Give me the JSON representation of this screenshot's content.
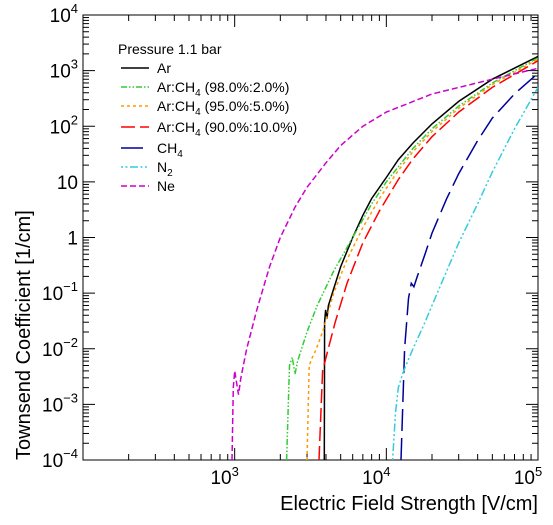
{
  "chart_data": {
    "type": "line",
    "xlabel": "Electric Field Strength [V/cm]",
    "ylabel": "Townsend Coefficient [1/cm]",
    "x_scale": "log",
    "y_scale": "log",
    "xlim": [
      100,
      100000
    ],
    "ylim": [
      0.0001,
      10000
    ],
    "grid": false,
    "legend_position": "top-left",
    "legend_title": "Pressure 1.1 bar",
    "x_ticks": [
      {
        "base": "10",
        "exp": "3",
        "value": 1000
      },
      {
        "base": "10",
        "exp": "4",
        "value": 10000
      },
      {
        "base": "10",
        "exp": "5",
        "value": 100000
      }
    ],
    "y_ticks": [
      {
        "base": "10",
        "exp": "−4",
        "value": 0.0001
      },
      {
        "base": "10",
        "exp": "−3",
        "value": 0.001
      },
      {
        "base": "10",
        "exp": "−2",
        "value": 0.01
      },
      {
        "base": "10",
        "exp": "−1",
        "value": 0.1
      },
      {
        "base": "1",
        "exp": "",
        "value": 1
      },
      {
        "base": "10",
        "exp": "",
        "value": 10
      },
      {
        "base": "10",
        "exp": "2",
        "value": 100
      },
      {
        "base": "10",
        "exp": "3",
        "value": 1000
      },
      {
        "base": "10",
        "exp": "4",
        "value": 10000
      }
    ],
    "series": [
      {
        "name": "Ar",
        "label_main": "Ar",
        "label_sub": "",
        "label_rest": "",
        "color": "#000000",
        "dash": "",
        "points": [
          [
            3900,
            0.0001
          ],
          [
            3920,
            0.03
          ],
          [
            3980,
            0.05
          ],
          [
            4060,
            0.035
          ],
          [
            4150,
            0.06
          ],
          [
            4400,
            0.1
          ],
          [
            5000,
            0.3
          ],
          [
            6000,
            1
          ],
          [
            7000,
            2.5
          ],
          [
            8000,
            5
          ],
          [
            10000,
            12
          ],
          [
            12000,
            25
          ],
          [
            15000,
            50
          ],
          [
            20000,
            110
          ],
          [
            30000,
            280
          ],
          [
            50000,
            700
          ],
          [
            100000,
            1800
          ]
        ]
      },
      {
        "name": "Ar:CH4 (98.0%:2.0%)",
        "label_main": "Ar:CH",
        "label_sub": "4",
        "label_rest": " (98.0%:2.0%)",
        "color": "#33cc33",
        "dash": "6,2,1.5,2,1.5,2",
        "points": [
          [
            2200,
            0.0001
          ],
          [
            2300,
            0.005
          ],
          [
            2400,
            0.007
          ],
          [
            2500,
            0.0035
          ],
          [
            2600,
            0.006
          ],
          [
            3000,
            0.02
          ],
          [
            3500,
            0.06
          ],
          [
            4500,
            0.25
          ],
          [
            6000,
            1
          ],
          [
            8000,
            4
          ],
          [
            10000,
            10
          ],
          [
            15000,
            40
          ],
          [
            20000,
            90
          ],
          [
            30000,
            230
          ],
          [
            50000,
            600
          ],
          [
            100000,
            1700
          ]
        ]
      },
      {
        "name": "Ar:CH4 (95.0%:5.0%)",
        "label_main": "Ar:CH",
        "label_sub": "4",
        "label_rest": " (95.0%:5.0%)",
        "color": "#ff9900",
        "dash": "3,3",
        "points": [
          [
            3000,
            0.0001
          ],
          [
            3100,
            0.005
          ],
          [
            3250,
            0.007
          ],
          [
            3400,
            0.009
          ],
          [
            3800,
            0.02
          ],
          [
            4500,
            0.1
          ],
          [
            5500,
            0.4
          ],
          [
            7000,
            1.5
          ],
          [
            9000,
            5
          ],
          [
            12000,
            16
          ],
          [
            15000,
            35
          ],
          [
            20000,
            80
          ],
          [
            30000,
            210
          ],
          [
            50000,
            560
          ],
          [
            100000,
            1600
          ]
        ]
      },
      {
        "name": "Ar:CH4 (90.0%:10.0%)",
        "label_main": "Ar:CH",
        "label_sub": "4",
        "label_rest": " (90.0%:10.0%)",
        "color": "#ff0000",
        "dash": "14,5",
        "points": [
          [
            3600,
            0.0001
          ],
          [
            3800,
            0.004
          ],
          [
            4100,
            0.009
          ],
          [
            4600,
            0.03
          ],
          [
            5500,
            0.15
          ],
          [
            7000,
            0.8
          ],
          [
            9000,
            3
          ],
          [
            12000,
            11
          ],
          [
            15000,
            26
          ],
          [
            20000,
            65
          ],
          [
            30000,
            180
          ],
          [
            50000,
            500
          ],
          [
            100000,
            1500
          ]
        ]
      },
      {
        "name": "CH4",
        "label_main": "CH",
        "label_sub": "4",
        "label_rest": "",
        "color": "#000099",
        "dash": "22,7",
        "points": [
          [
            12500,
            0.0001
          ],
          [
            13200,
            0.01
          ],
          [
            14000,
            0.08
          ],
          [
            14600,
            0.15
          ],
          [
            15200,
            0.13
          ],
          [
            16000,
            0.2
          ],
          [
            18000,
            0.5
          ],
          [
            20000,
            1.2
          ],
          [
            25000,
            5
          ],
          [
            30000,
            14
          ],
          [
            40000,
            55
          ],
          [
            50000,
            140
          ],
          [
            70000,
            380
          ],
          [
            100000,
            900
          ]
        ]
      },
      {
        "name": "N2",
        "label_main": "N",
        "label_sub": "2",
        "label_rest": "",
        "color": "#33ccdd",
        "dash": "2,2.5,2,2.5,8,2.5",
        "points": [
          [
            11000,
            0.0001
          ],
          [
            11500,
            0.0007
          ],
          [
            12000,
            0.002
          ],
          [
            13000,
            0.004
          ],
          [
            15000,
            0.01
          ],
          [
            18000,
            0.03
          ],
          [
            20000,
            0.06
          ],
          [
            25000,
            0.25
          ],
          [
            30000,
            0.8
          ],
          [
            40000,
            4
          ],
          [
            50000,
            15
          ],
          [
            70000,
            90
          ],
          [
            100000,
            500
          ]
        ]
      },
      {
        "name": "Ne",
        "label_main": "Ne",
        "label_sub": "",
        "label_rest": "",
        "color": "#cc00cc",
        "dash": "6,3",
        "points": [
          [
            960,
            0.0001
          ],
          [
            980,
            0.002
          ],
          [
            1000,
            0.004
          ],
          [
            1060,
            0.0015
          ],
          [
            1100,
            0.003
          ],
          [
            1200,
            0.01
          ],
          [
            1400,
            0.05
          ],
          [
            1700,
            0.3
          ],
          [
            2000,
            1
          ],
          [
            2500,
            3.5
          ],
          [
            3000,
            8
          ],
          [
            4000,
            22
          ],
          [
            5000,
            45
          ],
          [
            7000,
            100
          ],
          [
            10000,
            180
          ],
          [
            20000,
            380
          ],
          [
            50000,
            700
          ],
          [
            100000,
            1100
          ]
        ]
      }
    ]
  }
}
